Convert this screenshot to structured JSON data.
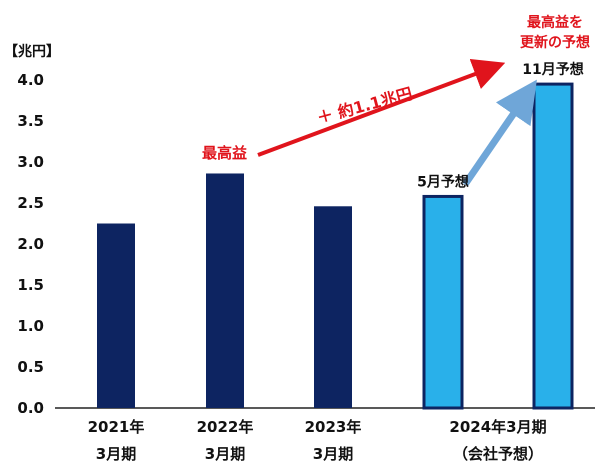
{
  "chart_data": {
    "type": "bar",
    "unit_label": "【兆円】",
    "ylim": [
      0,
      4.0
    ],
    "yticks": [
      "0.0",
      "0.5",
      "1.0",
      "1.5",
      "2.0",
      "2.5",
      "3.0",
      "3.5",
      "4.0"
    ],
    "categories": [
      {
        "line1": "2021年",
        "line2": "3月期"
      },
      {
        "line1": "2022年",
        "line2": "3月期"
      },
      {
        "line1": "2023年",
        "line2": "3月期"
      },
      {
        "line1": "2024年3月期",
        "line2": "（会社予想）"
      }
    ],
    "bars": [
      {
        "category": 0,
        "value": 2.25,
        "style": "actual"
      },
      {
        "category": 1,
        "value": 2.86,
        "style": "actual"
      },
      {
        "category": 2,
        "value": 2.46,
        "style": "actual"
      },
      {
        "category": 3,
        "value": 2.58,
        "style": "forecast",
        "label": "5月予想"
      },
      {
        "category": 3,
        "value": 3.95,
        "style": "forecast",
        "label": "11月予想"
      }
    ],
    "annotations": {
      "record_label": "最高益",
      "increase_label": "＋ 約1.1兆円",
      "new_record_line1": "最高益を",
      "new_record_line2": "更新の予想"
    },
    "colors": {
      "actual": "#0d2461",
      "forecast_fill": "#29b0ea",
      "forecast_outline": "#0d2461",
      "red_arrow": "#e0141c",
      "blue_arrow": "#6fa6d8",
      "text": "#111111",
      "axis": "#222222"
    }
  }
}
